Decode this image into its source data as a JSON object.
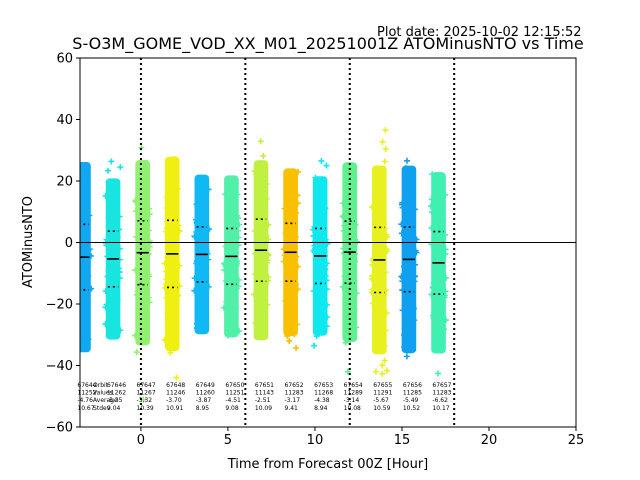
{
  "plot_date": "Plot date: 2025-10-02 12:15:52",
  "chart_data": {
    "type": "scatter",
    "title": "S-O3M_GOME_VOD_XX_M01_20251001Z ATOMinusNTO vs Time",
    "xlabel": "Time from Forecast 00Z [Hour]",
    "ylabel": "ATOMinusNTO",
    "xlim": [
      -3.5,
      25
    ],
    "ylim": [
      -60,
      60
    ],
    "xticks": [
      0,
      5,
      10,
      15,
      20,
      25
    ],
    "yticks": [
      -60,
      -40,
      -20,
      0,
      20,
      40,
      60
    ],
    "vlines": [
      0,
      6,
      12,
      18
    ],
    "hline": 0,
    "stats_legend": [
      "Orbit",
      "Values",
      "Average",
      "Stdev"
    ],
    "groups": [
      {
        "x": -3.3,
        "orbit": "67644",
        "count": "11252",
        "mean": "-4.76",
        "stdev": "10.67",
        "color": "#10a8f0"
      },
      {
        "x": -1.6,
        "orbit": "67646",
        "count": "11262",
        "mean": "-5.35",
        "stdev": "9.04",
        "color": "#18e4e0"
      },
      {
        "x": 0.1,
        "orbit": "67647",
        "count": "11267",
        "mean": "-3.32",
        "stdev": "10.39",
        "color": "#90f070"
      },
      {
        "x": 1.8,
        "orbit": "67648",
        "count": "11246",
        "mean": "-3.70",
        "stdev": "10.91",
        "color": "#f0f010"
      },
      {
        "x": 3.5,
        "orbit": "67649",
        "count": "11260",
        "mean": "-3.87",
        "stdev": "8.95",
        "color": "#10b8f4"
      },
      {
        "x": 5.2,
        "orbit": "67650",
        "count": "11251",
        "mean": "-4.51",
        "stdev": "9.08",
        "color": "#50f0a8"
      },
      {
        "x": 6.9,
        "orbit": "67651",
        "count": "11143",
        "mean": "-2.51",
        "stdev": "10.09",
        "color": "#c0f040"
      },
      {
        "x": 8.6,
        "orbit": "67652",
        "count": "11283",
        "mean": "-3.17",
        "stdev": "9.41",
        "color": "#f8c000"
      },
      {
        "x": 10.3,
        "orbit": "67653",
        "count": "11268",
        "mean": "-4.38",
        "stdev": "8.94",
        "color": "#10e8f0"
      },
      {
        "x": 12.0,
        "orbit": "67654",
        "count": "11289",
        "mean": "-3.14",
        "stdev": "10.08",
        "color": "#60f090"
      },
      {
        "x": 13.7,
        "orbit": "67655",
        "count": "11291",
        "mean": "-5.67",
        "stdev": "10.59",
        "color": "#e8f020"
      },
      {
        "x": 15.4,
        "orbit": "67656",
        "count": "11285",
        "mean": "-5.49",
        "stdev": "10.52",
        "color": "#10a0f0"
      },
      {
        "x": 17.1,
        "orbit": "67657",
        "count": "11283",
        "mean": "-6.62",
        "stdev": "10.17",
        "color": "#40f0b0"
      }
    ]
  }
}
